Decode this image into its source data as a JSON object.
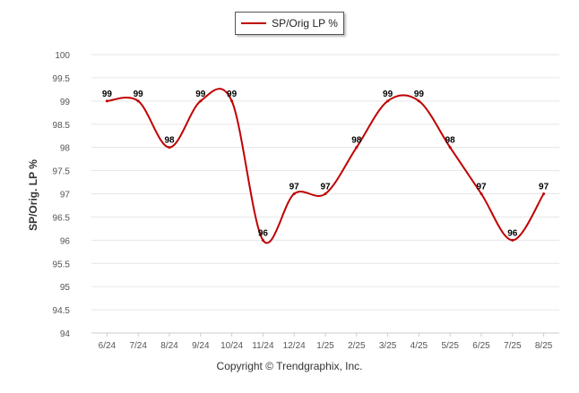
{
  "legend": {
    "label": "SP/Orig LP %"
  },
  "credit": "Copyright © Trendgraphix, Inc.",
  "colors": {
    "series": "#c00000",
    "grid": "#e6e6e6",
    "axis_text": "#555555"
  },
  "chart_data": {
    "type": "line",
    "title": "",
    "xlabel": "",
    "ylabel": "SP/Orig. LP %",
    "ylim": [
      94,
      100
    ],
    "y_ticks": [
      "94",
      "94.5",
      "95",
      "95.5",
      "96",
      "96.5",
      "97",
      "97.5",
      "98",
      "98.5",
      "99",
      "99.5",
      "100"
    ],
    "grid": true,
    "legend_position": "top-center",
    "categories": [
      "6/24",
      "7/24",
      "8/24",
      "9/24",
      "10/24",
      "11/24",
      "12/24",
      "1/25",
      "2/25",
      "3/25",
      "4/25",
      "5/25",
      "6/25",
      "7/25",
      "8/25"
    ],
    "series": [
      {
        "name": "SP/Orig LP %",
        "values": [
          99,
          99,
          98,
          99,
          99,
          96,
          97,
          97,
          98,
          99,
          99,
          98,
          97,
          96,
          97
        ],
        "labels": [
          "99",
          "99",
          "98",
          "99",
          "99",
          "96",
          "97",
          "97",
          "98",
          "99",
          "99",
          "98",
          "97",
          "96",
          "97"
        ]
      }
    ]
  }
}
